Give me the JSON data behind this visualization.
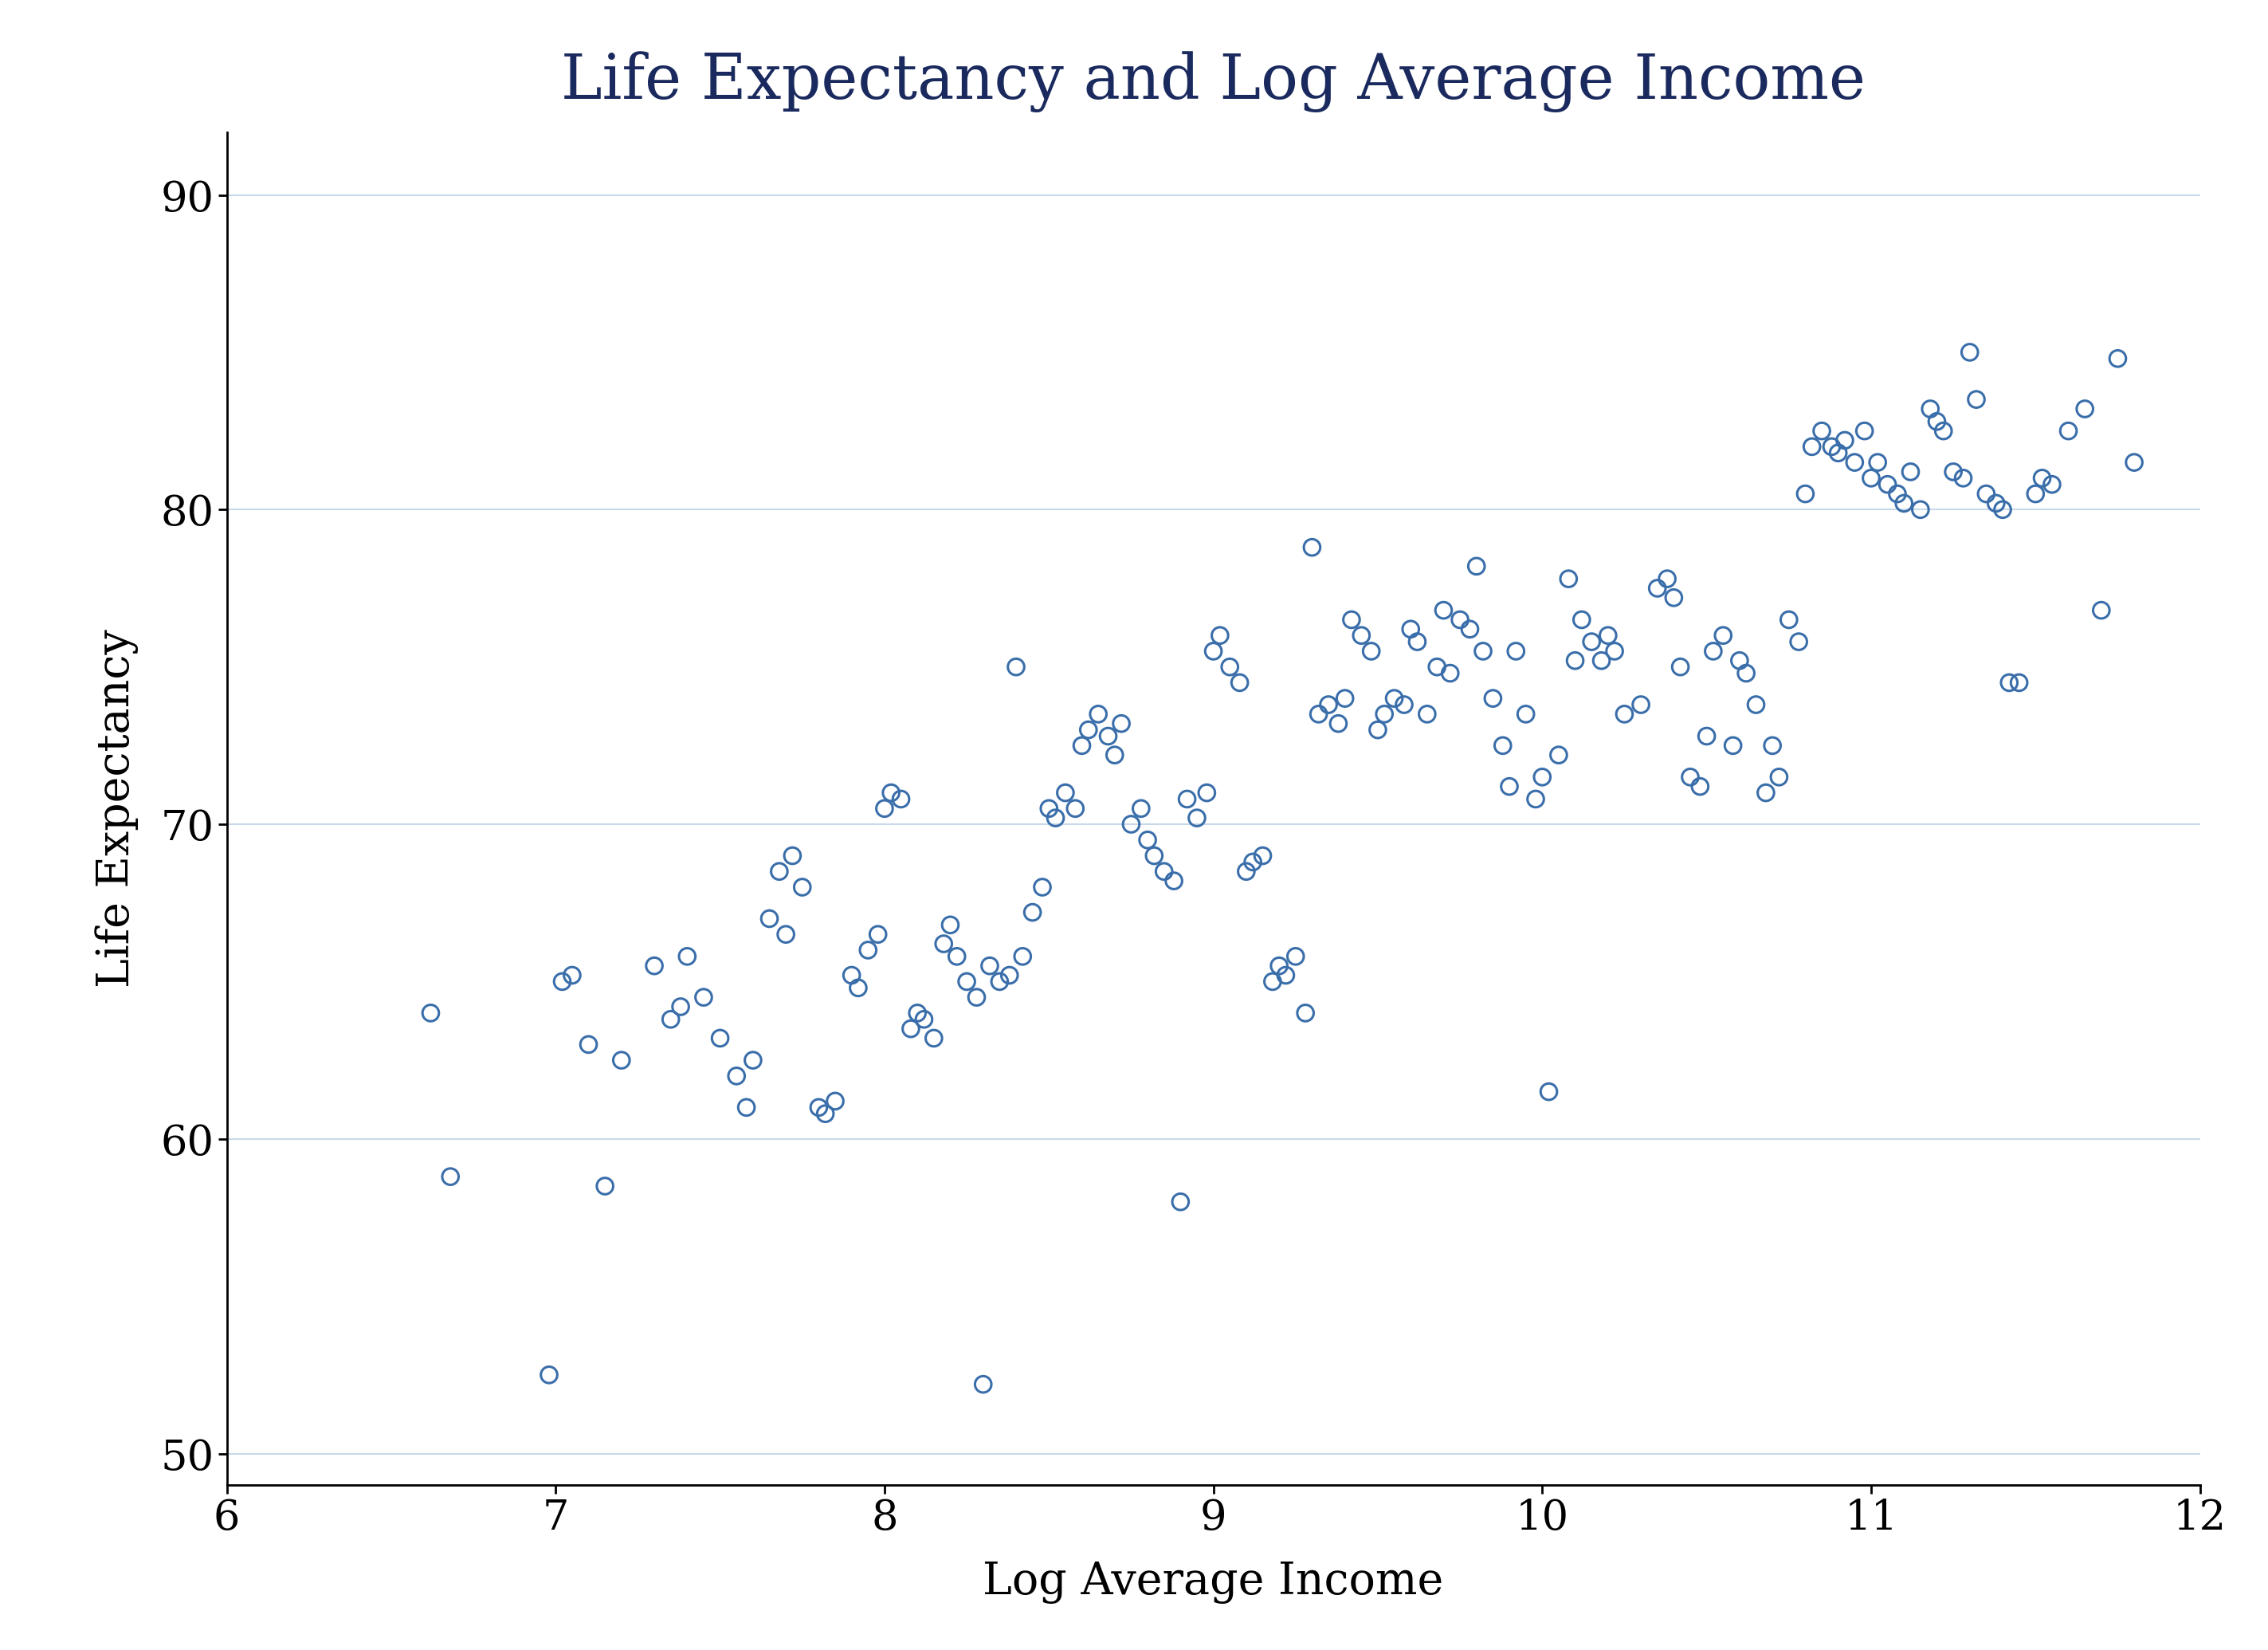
{
  "title": "Life Expectancy and Log Average Income",
  "xlabel": "Log Average Income",
  "ylabel": "Life Expectancy",
  "xlim": [
    6,
    12
  ],
  "ylim": [
    49,
    92
  ],
  "xticks": [
    6,
    7,
    8,
    9,
    10,
    11,
    12
  ],
  "yticks": [
    50,
    60,
    70,
    80,
    90
  ],
  "marker_color": "#3a6eaa",
  "background_color": "#ffffff",
  "title_color": "#1a2a5e",
  "axis_color": "#000000",
  "label_color": "#000000",
  "tick_color": "#000000",
  "grid_color": "#c8d8e8",
  "title_fontsize": 56,
  "label_fontsize": 40,
  "tick_fontsize": 38,
  "marker_size": 220,
  "marker_linewidth": 2.2,
  "scatter_data": [
    [
      6.62,
      64.0
    ],
    [
      6.68,
      58.8
    ],
    [
      6.98,
      52.5
    ],
    [
      7.02,
      65.0
    ],
    [
      7.05,
      65.2
    ],
    [
      7.1,
      63.0
    ],
    [
      7.15,
      58.5
    ],
    [
      7.2,
      62.5
    ],
    [
      7.3,
      65.5
    ],
    [
      7.35,
      63.8
    ],
    [
      7.38,
      64.2
    ],
    [
      7.4,
      65.8
    ],
    [
      7.45,
      64.5
    ],
    [
      7.5,
      63.2
    ],
    [
      7.55,
      62.0
    ],
    [
      7.58,
      61.0
    ],
    [
      7.6,
      62.5
    ],
    [
      7.65,
      67.0
    ],
    [
      7.68,
      68.5
    ],
    [
      7.7,
      66.5
    ],
    [
      7.72,
      69.0
    ],
    [
      7.75,
      68.0
    ],
    [
      7.8,
      61.0
    ],
    [
      7.82,
      60.8
    ],
    [
      7.85,
      61.2
    ],
    [
      7.9,
      65.2
    ],
    [
      7.92,
      64.8
    ],
    [
      7.95,
      66.0
    ],
    [
      7.98,
      66.5
    ],
    [
      8.0,
      70.5
    ],
    [
      8.02,
      71.0
    ],
    [
      8.05,
      70.8
    ],
    [
      8.08,
      63.5
    ],
    [
      8.1,
      64.0
    ],
    [
      8.12,
      63.8
    ],
    [
      8.15,
      63.2
    ],
    [
      8.18,
      66.2
    ],
    [
      8.2,
      66.8
    ],
    [
      8.22,
      65.8
    ],
    [
      8.25,
      65.0
    ],
    [
      8.28,
      64.5
    ],
    [
      8.3,
      52.2
    ],
    [
      8.32,
      65.5
    ],
    [
      8.35,
      65.0
    ],
    [
      8.38,
      65.2
    ],
    [
      8.4,
      75.0
    ],
    [
      8.42,
      65.8
    ],
    [
      8.45,
      67.2
    ],
    [
      8.48,
      68.0
    ],
    [
      8.5,
      70.5
    ],
    [
      8.52,
      70.2
    ],
    [
      8.55,
      71.0
    ],
    [
      8.58,
      70.5
    ],
    [
      8.6,
      72.5
    ],
    [
      8.62,
      73.0
    ],
    [
      8.65,
      73.5
    ],
    [
      8.68,
      72.8
    ],
    [
      8.7,
      72.2
    ],
    [
      8.72,
      73.2
    ],
    [
      8.75,
      70.0
    ],
    [
      8.78,
      70.5
    ],
    [
      8.8,
      69.5
    ],
    [
      8.82,
      69.0
    ],
    [
      8.85,
      68.5
    ],
    [
      8.88,
      68.2
    ],
    [
      8.9,
      58.0
    ],
    [
      8.92,
      70.8
    ],
    [
      8.95,
      70.2
    ],
    [
      8.98,
      71.0
    ],
    [
      9.0,
      75.5
    ],
    [
      9.02,
      76.0
    ],
    [
      9.05,
      75.0
    ],
    [
      9.08,
      74.5
    ],
    [
      9.1,
      68.5
    ],
    [
      9.12,
      68.8
    ],
    [
      9.15,
      69.0
    ],
    [
      9.18,
      65.0
    ],
    [
      9.2,
      65.5
    ],
    [
      9.22,
      65.2
    ],
    [
      9.25,
      65.8
    ],
    [
      9.28,
      64.0
    ],
    [
      9.3,
      78.8
    ],
    [
      9.32,
      73.5
    ],
    [
      9.35,
      73.8
    ],
    [
      9.38,
      73.2
    ],
    [
      9.4,
      74.0
    ],
    [
      9.42,
      76.5
    ],
    [
      9.45,
      76.0
    ],
    [
      9.48,
      75.5
    ],
    [
      9.5,
      73.0
    ],
    [
      9.52,
      73.5
    ],
    [
      9.55,
      74.0
    ],
    [
      9.58,
      73.8
    ],
    [
      9.6,
      76.2
    ],
    [
      9.62,
      75.8
    ],
    [
      9.65,
      73.5
    ],
    [
      9.68,
      75.0
    ],
    [
      9.7,
      76.8
    ],
    [
      9.72,
      74.8
    ],
    [
      9.75,
      76.5
    ],
    [
      9.78,
      76.2
    ],
    [
      9.8,
      78.2
    ],
    [
      9.82,
      75.5
    ],
    [
      9.85,
      74.0
    ],
    [
      9.88,
      72.5
    ],
    [
      9.9,
      71.2
    ],
    [
      9.92,
      75.5
    ],
    [
      9.95,
      73.5
    ],
    [
      9.98,
      70.8
    ],
    [
      10.0,
      71.5
    ],
    [
      10.02,
      61.5
    ],
    [
      10.05,
      72.2
    ],
    [
      10.08,
      77.8
    ],
    [
      10.1,
      75.2
    ],
    [
      10.12,
      76.5
    ],
    [
      10.15,
      75.8
    ],
    [
      10.18,
      75.2
    ],
    [
      10.2,
      76.0
    ],
    [
      10.22,
      75.5
    ],
    [
      10.25,
      73.5
    ],
    [
      10.3,
      73.8
    ],
    [
      10.35,
      77.5
    ],
    [
      10.38,
      77.8
    ],
    [
      10.4,
      77.2
    ],
    [
      10.42,
      75.0
    ],
    [
      10.45,
      71.5
    ],
    [
      10.48,
      71.2
    ],
    [
      10.5,
      72.8
    ],
    [
      10.52,
      75.5
    ],
    [
      10.55,
      76.0
    ],
    [
      10.58,
      72.5
    ],
    [
      10.6,
      75.2
    ],
    [
      10.62,
      74.8
    ],
    [
      10.65,
      73.8
    ],
    [
      10.68,
      71.0
    ],
    [
      10.7,
      72.5
    ],
    [
      10.72,
      71.5
    ],
    [
      10.75,
      76.5
    ],
    [
      10.78,
      75.8
    ],
    [
      10.8,
      80.5
    ],
    [
      10.82,
      82.0
    ],
    [
      10.85,
      82.5
    ],
    [
      10.88,
      82.0
    ],
    [
      10.9,
      81.8
    ],
    [
      10.92,
      82.2
    ],
    [
      10.95,
      81.5
    ],
    [
      10.98,
      82.5
    ],
    [
      11.0,
      81.0
    ],
    [
      11.02,
      81.5
    ],
    [
      11.05,
      80.8
    ],
    [
      11.08,
      80.5
    ],
    [
      11.1,
      80.2
    ],
    [
      11.12,
      81.2
    ],
    [
      11.15,
      80.0
    ],
    [
      11.18,
      83.2
    ],
    [
      11.2,
      82.8
    ],
    [
      11.22,
      82.5
    ],
    [
      11.25,
      81.2
    ],
    [
      11.28,
      81.0
    ],
    [
      11.3,
      85.0
    ],
    [
      11.32,
      83.5
    ],
    [
      11.35,
      80.5
    ],
    [
      11.38,
      80.2
    ],
    [
      11.4,
      80.0
    ],
    [
      11.42,
      74.5
    ],
    [
      11.45,
      74.5
    ],
    [
      11.5,
      80.5
    ],
    [
      11.52,
      81.0
    ],
    [
      11.55,
      80.8
    ],
    [
      11.6,
      82.5
    ],
    [
      11.65,
      83.2
    ],
    [
      11.7,
      76.8
    ],
    [
      11.75,
      84.8
    ],
    [
      11.8,
      81.5
    ]
  ]
}
